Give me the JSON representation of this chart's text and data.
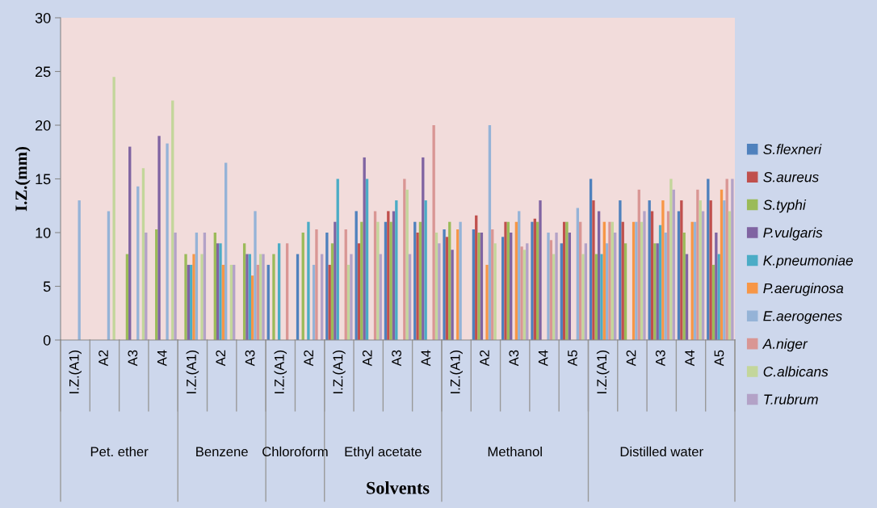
{
  "chart_data": {
    "type": "bar",
    "xlabel": "Solvents",
    "ylabel": "I.Z.(mm)",
    "categories": [
      "I.Z.(A1)",
      "A2",
      "A3",
      "A4",
      "I.Z.(A1)",
      "A2",
      "A3",
      "I.Z.(A1)",
      "A2",
      "I.Z.(A1)",
      "A2",
      "A3",
      "A4",
      "I.Z.(A1)",
      "A2",
      "A3",
      "A4",
      "A5",
      "I.Z.(A1)",
      "A2",
      "A3",
      "A4",
      "A5"
    ],
    "annotations": [
      "Pet. ether",
      "Benzene",
      "Chloroform",
      "Ethyl acetate",
      "Methanol",
      "Distilled water"
    ],
    "series": [
      {
        "name": "S.flexneri",
        "color": "#4f81bd",
        "values": [
          null,
          null,
          null,
          null,
          null,
          null,
          null,
          7,
          8,
          10,
          12,
          11,
          11,
          10.3,
          10.3,
          9.6,
          11,
          9,
          15,
          13,
          13,
          12,
          15
        ]
      },
      {
        "name": "S.aureus",
        "color": "#c0504d",
        "values": [
          null,
          null,
          null,
          null,
          null,
          null,
          null,
          null,
          null,
          7,
          9,
          12,
          10,
          9.6,
          11.6,
          11,
          11.3,
          11,
          13,
          11,
          12,
          13,
          13
        ]
      },
      {
        "name": "S.typhi",
        "color": "#9bbb59",
        "values": [
          null,
          null,
          8,
          10.3,
          8,
          10,
          9,
          8,
          10,
          9,
          11,
          11,
          11,
          11,
          10,
          11,
          11,
          11,
          8,
          9,
          9,
          10,
          7
        ]
      },
      {
        "name": "P.vulgaris",
        "color": "#8064a2",
        "values": [
          null,
          null,
          18,
          19,
          7,
          9,
          8,
          null,
          null,
          11,
          17,
          12,
          17,
          8.4,
          10,
          10,
          13,
          10,
          12,
          null,
          9,
          8,
          10
        ]
      },
      {
        "name": "K.pneumoniae",
        "color": "#4bacc6",
        "values": [
          null,
          null,
          null,
          null,
          7,
          9,
          8,
          9,
          11,
          15,
          15,
          13,
          13,
          null,
          null,
          null,
          null,
          null,
          8,
          null,
          10.7,
          null,
          8
        ]
      },
      {
        "name": "P.aeruginosa",
        "color": "#f79646",
        "values": [
          null,
          null,
          null,
          null,
          8,
          7,
          6,
          null,
          null,
          null,
          null,
          null,
          null,
          10.3,
          7,
          11,
          null,
          null,
          11,
          11,
          13,
          11,
          14
        ]
      },
      {
        "name": "E.aerogenes",
        "color": "#95b3d7",
        "values": [
          13,
          12,
          14.3,
          18.3,
          10,
          16.5,
          12,
          null,
          7,
          null,
          null,
          null,
          null,
          11,
          20,
          12,
          10,
          12.3,
          9,
          11,
          10,
          11,
          13
        ]
      },
      {
        "name": "A.niger",
        "color": "#d99694",
        "values": [
          null,
          null,
          null,
          null,
          null,
          null,
          7,
          9,
          10.3,
          10.3,
          12,
          15,
          20,
          null,
          10.3,
          8.7,
          9.3,
          11,
          11,
          14,
          12,
          14,
          15
        ]
      },
      {
        "name": "C.albicans",
        "color": "#c3d69b",
        "values": [
          null,
          24.5,
          16,
          22.3,
          8,
          7,
          8,
          null,
          null,
          7,
          11,
          14,
          10,
          null,
          9,
          8.4,
          8,
          8,
          11,
          11,
          15,
          13,
          12
        ]
      },
      {
        "name": "T.rubrum",
        "color": "#b3a2c7",
        "values": [
          null,
          null,
          10,
          10,
          10,
          7,
          8,
          null,
          8,
          8,
          8,
          8,
          9,
          null,
          null,
          9,
          10,
          9,
          10,
          12,
          14,
          12,
          15
        ]
      }
    ],
    "ylim": [
      0,
      30
    ],
    "yticks": [
      0,
      5,
      10,
      15,
      20,
      25,
      30
    ],
    "legend": "right"
  }
}
